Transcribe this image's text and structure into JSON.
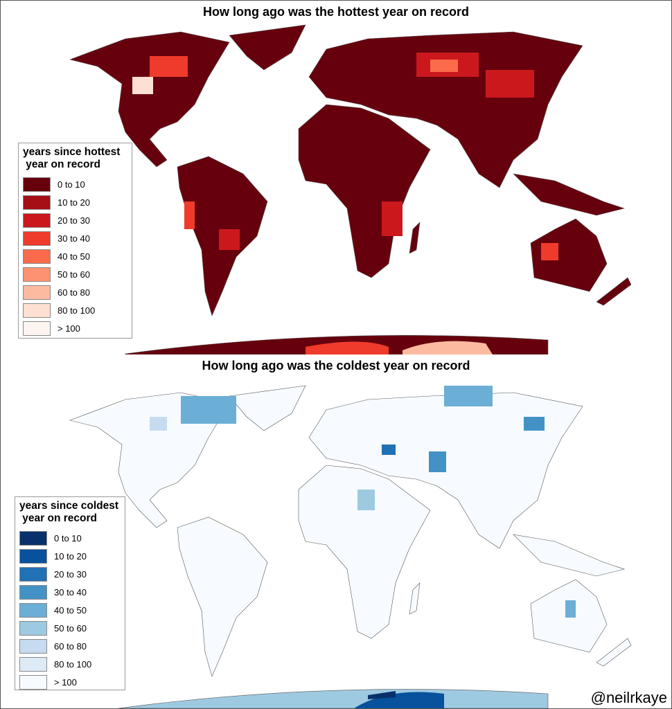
{
  "top": {
    "title": "How long ago was the hottest year on record",
    "legend_title": "years since hottest\n year on record",
    "land_color": "#67000d",
    "classes": [
      {
        "label": "0 to 10",
        "color": "#67000d"
      },
      {
        "label": "10 to 20",
        "color": "#a50f15"
      },
      {
        "label": "20 to 30",
        "color": "#cb181d"
      },
      {
        "label": "30 to 40",
        "color": "#ef3b2c"
      },
      {
        "label": "40 to 50",
        "color": "#fb6a4a"
      },
      {
        "label": "50 to 60",
        "color": "#fc9272"
      },
      {
        "label": "60 to 80",
        "color": "#fcbba1"
      },
      {
        "label": "80 to 100",
        "color": "#fee0d2"
      },
      {
        "label": "> 100",
        "color": "#fff5f0"
      }
    ]
  },
  "bottom": {
    "title": "How long ago was the coldest year on record",
    "legend_title": "years since coldest\n year on record",
    "land_color": "#f7fbff",
    "classes": [
      {
        "label": "0 to 10",
        "color": "#08306b"
      },
      {
        "label": "10 to 20",
        "color": "#08519c"
      },
      {
        "label": "20 to 30",
        "color": "#2171b5"
      },
      {
        "label": "30 to 40",
        "color": "#4292c6"
      },
      {
        "label": "40 to 50",
        "color": "#6baed6"
      },
      {
        "label": "50 to 60",
        "color": "#9ecae1"
      },
      {
        "label": "60 to 80",
        "color": "#c6dbef"
      },
      {
        "label": "80 to 100",
        "color": "#deebf7"
      },
      {
        "label": "> 100",
        "color": "#f7fbff"
      }
    ]
  },
  "watermark": "@neilrkaye"
}
